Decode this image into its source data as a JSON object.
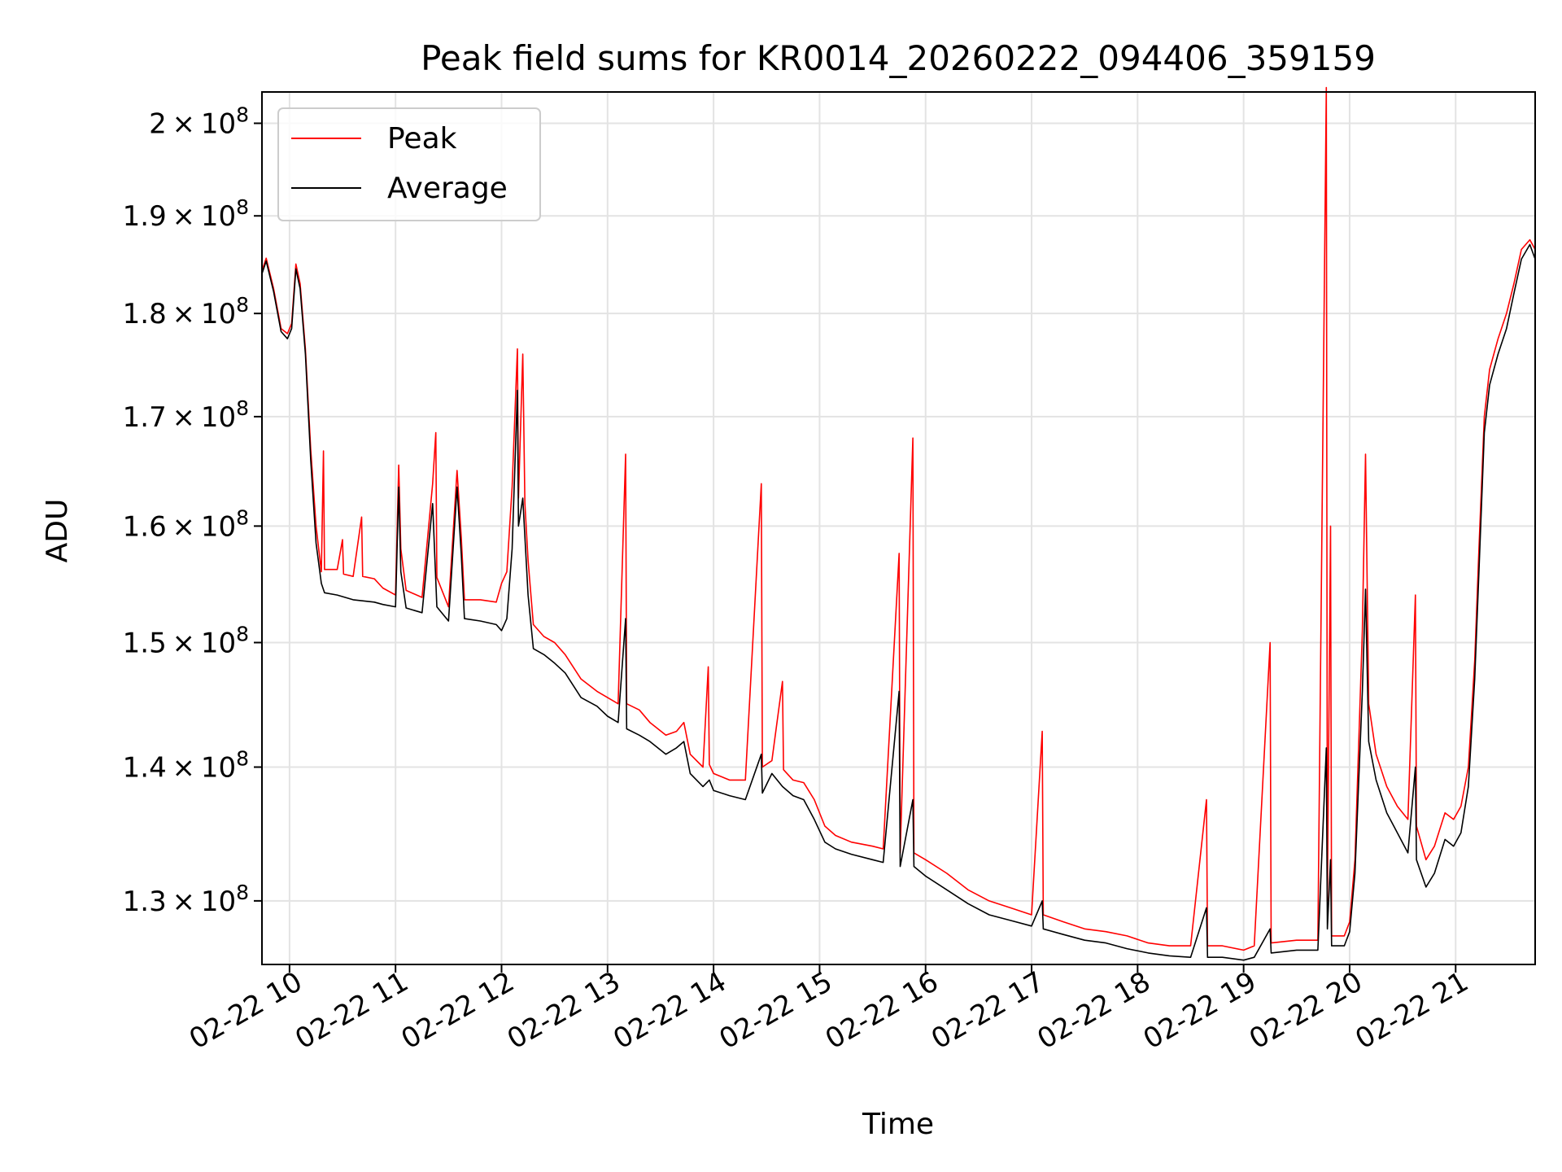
{
  "chart_data": {
    "type": "line",
    "title": "Peak field sums for KR0014_20260222_094406_359159",
    "xlabel": "Time",
    "ylabel": "ADU",
    "yscale": "log",
    "xlim": [
      9.74,
      21.75
    ],
    "ylim": [
      125500000,
      203500000
    ],
    "grid": true,
    "legend_position": "top-left",
    "x_ticks": [
      {
        "value": 10,
        "label": "02-22 10"
      },
      {
        "value": 11,
        "label": "02-22 11"
      },
      {
        "value": 12,
        "label": "02-22 12"
      },
      {
        "value": 13,
        "label": "02-22 13"
      },
      {
        "value": 14,
        "label": "02-22 14"
      },
      {
        "value": 15,
        "label": "02-22 15"
      },
      {
        "value": 16,
        "label": "02-22 16"
      },
      {
        "value": 17,
        "label": "02-22 17"
      },
      {
        "value": 18,
        "label": "02-22 18"
      },
      {
        "value": 19,
        "label": "02-22 19"
      },
      {
        "value": 20,
        "label": "02-22 20"
      },
      {
        "value": 21,
        "label": "02-22 21"
      }
    ],
    "y_ticks": [
      {
        "value": 130000000,
        "mantissa": "1.3",
        "exp": "8"
      },
      {
        "value": 140000000,
        "mantissa": "1.4",
        "exp": "8"
      },
      {
        "value": 150000000,
        "mantissa": "1.5",
        "exp": "8"
      },
      {
        "value": 160000000,
        "mantissa": "1.6",
        "exp": "8"
      },
      {
        "value": 170000000,
        "mantissa": "1.7",
        "exp": "8"
      },
      {
        "value": 180000000,
        "mantissa": "1.8",
        "exp": "8"
      },
      {
        "value": 190000000,
        "mantissa": "1.9",
        "exp": "8"
      },
      {
        "value": 200000000,
        "mantissa": "2",
        "exp": "8"
      }
    ],
    "series": [
      {
        "name": "Peak",
        "color": "#ff0000",
        "points": [
          [
            9.74,
            184.3
          ],
          [
            9.78,
            185.6
          ],
          [
            9.85,
            182.5
          ],
          [
            9.92,
            178.5
          ],
          [
            9.98,
            178.0
          ],
          [
            10.02,
            179.0
          ],
          [
            10.06,
            185.0
          ],
          [
            10.1,
            183.0
          ],
          [
            10.15,
            176.5
          ],
          [
            10.2,
            167.0
          ],
          [
            10.25,
            160.0
          ],
          [
            10.3,
            156.0
          ],
          [
            10.32,
            166.8
          ],
          [
            10.33,
            156.2
          ],
          [
            10.45,
            156.2
          ],
          [
            10.5,
            158.8
          ],
          [
            10.51,
            155.8
          ],
          [
            10.6,
            155.6
          ],
          [
            10.68,
            160.8
          ],
          [
            10.69,
            155.6
          ],
          [
            10.8,
            155.4
          ],
          [
            10.88,
            154.6
          ],
          [
            11.0,
            154.0
          ],
          [
            11.03,
            165.5
          ],
          [
            11.05,
            158.0
          ],
          [
            11.1,
            154.4
          ],
          [
            11.25,
            153.8
          ],
          [
            11.35,
            163.8
          ],
          [
            11.38,
            168.5
          ],
          [
            11.39,
            155.5
          ],
          [
            11.5,
            153.0
          ],
          [
            11.58,
            165.0
          ],
          [
            11.62,
            159.0
          ],
          [
            11.65,
            153.6
          ],
          [
            11.8,
            153.6
          ],
          [
            11.95,
            153.4
          ],
          [
            12.0,
            155.0
          ],
          [
            12.05,
            156.0
          ],
          [
            12.1,
            163.5
          ],
          [
            12.15,
            176.5
          ],
          [
            12.16,
            162.5
          ],
          [
            12.2,
            176.0
          ],
          [
            12.22,
            162.0
          ],
          [
            12.25,
            157.0
          ],
          [
            12.3,
            151.5
          ],
          [
            12.4,
            150.5
          ],
          [
            12.5,
            150.0
          ],
          [
            12.6,
            149.0
          ],
          [
            12.75,
            147.0
          ],
          [
            12.9,
            146.0
          ],
          [
            13.0,
            145.5
          ],
          [
            13.1,
            145.0
          ],
          [
            13.17,
            166.5
          ],
          [
            13.18,
            145.0
          ],
          [
            13.3,
            144.5
          ],
          [
            13.4,
            143.5
          ],
          [
            13.55,
            142.5
          ],
          [
            13.65,
            142.8
          ],
          [
            13.72,
            143.5
          ],
          [
            13.78,
            141.0
          ],
          [
            13.9,
            140.0
          ],
          [
            13.95,
            148.0
          ],
          [
            13.96,
            140.2
          ],
          [
            14.0,
            139.5
          ],
          [
            14.15,
            139.0
          ],
          [
            14.3,
            139.0
          ],
          [
            14.45,
            163.8
          ],
          [
            14.46,
            140.0
          ],
          [
            14.55,
            140.5
          ],
          [
            14.65,
            146.8
          ],
          [
            14.66,
            139.8
          ],
          [
            14.75,
            139.0
          ],
          [
            14.85,
            138.8
          ],
          [
            14.95,
            137.5
          ],
          [
            15.05,
            135.5
          ],
          [
            15.15,
            134.8
          ],
          [
            15.3,
            134.3
          ],
          [
            15.5,
            134.0
          ],
          [
            15.6,
            133.8
          ],
          [
            15.75,
            157.6
          ],
          [
            15.76,
            133.5
          ],
          [
            15.88,
            168.0
          ],
          [
            15.89,
            133.5
          ],
          [
            16.0,
            133.0
          ],
          [
            16.2,
            132.0
          ],
          [
            16.4,
            130.8
          ],
          [
            16.6,
            130.0
          ],
          [
            16.8,
            129.5
          ],
          [
            17.0,
            129.0
          ],
          [
            17.1,
            142.8
          ],
          [
            17.11,
            129.0
          ],
          [
            17.3,
            128.5
          ],
          [
            17.5,
            128.0
          ],
          [
            17.7,
            127.8
          ],
          [
            17.9,
            127.5
          ],
          [
            18.1,
            127.0
          ],
          [
            18.3,
            126.8
          ],
          [
            18.5,
            126.8
          ],
          [
            18.65,
            137.5
          ],
          [
            18.66,
            126.8
          ],
          [
            18.8,
            126.8
          ],
          [
            19.0,
            126.5
          ],
          [
            19.1,
            126.8
          ],
          [
            19.25,
            150.0
          ],
          [
            19.26,
            127.0
          ],
          [
            19.5,
            127.2
          ],
          [
            19.7,
            127.2
          ],
          [
            19.78,
            204.0
          ],
          [
            19.79,
            130.0
          ],
          [
            19.82,
            160.0
          ],
          [
            19.83,
            127.5
          ],
          [
            19.95,
            127.5
          ],
          [
            20.0,
            128.5
          ],
          [
            20.05,
            133.0
          ],
          [
            20.12,
            151.0
          ],
          [
            20.15,
            166.5
          ],
          [
            20.18,
            145.0
          ],
          [
            20.25,
            141.0
          ],
          [
            20.35,
            138.5
          ],
          [
            20.45,
            137.0
          ],
          [
            20.55,
            136.0
          ],
          [
            20.62,
            154.0
          ],
          [
            20.63,
            135.5
          ],
          [
            20.72,
            133.0
          ],
          [
            20.8,
            134.0
          ],
          [
            20.9,
            136.5
          ],
          [
            20.98,
            136.0
          ],
          [
            21.05,
            137.0
          ],
          [
            21.12,
            140.0
          ],
          [
            21.18,
            148.5
          ],
          [
            21.22,
            158.0
          ],
          [
            21.27,
            170.0
          ],
          [
            21.32,
            174.5
          ],
          [
            21.4,
            177.5
          ],
          [
            21.48,
            180.0
          ],
          [
            21.55,
            183.0
          ],
          [
            21.62,
            186.5
          ],
          [
            21.7,
            187.5
          ],
          [
            21.75,
            186.5
          ]
        ]
      },
      {
        "name": "Average",
        "color": "#000000",
        "points": [
          [
            9.74,
            184.0
          ],
          [
            9.78,
            185.3
          ],
          [
            9.85,
            182.2
          ],
          [
            9.92,
            178.2
          ],
          [
            9.98,
            177.5
          ],
          [
            10.02,
            178.5
          ],
          [
            10.06,
            184.5
          ],
          [
            10.1,
            182.5
          ],
          [
            10.15,
            176.0
          ],
          [
            10.2,
            166.0
          ],
          [
            10.25,
            158.5
          ],
          [
            10.3,
            155.0
          ],
          [
            10.33,
            154.2
          ],
          [
            10.45,
            154.0
          ],
          [
            10.6,
            153.6
          ],
          [
            10.8,
            153.4
          ],
          [
            10.88,
            153.2
          ],
          [
            11.0,
            153.0
          ],
          [
            11.03,
            163.5
          ],
          [
            11.05,
            156.0
          ],
          [
            11.1,
            152.9
          ],
          [
            11.25,
            152.5
          ],
          [
            11.35,
            162.0
          ],
          [
            11.39,
            153.0
          ],
          [
            11.5,
            151.8
          ],
          [
            11.58,
            163.5
          ],
          [
            11.62,
            157.5
          ],
          [
            11.65,
            152.0
          ],
          [
            11.8,
            151.8
          ],
          [
            11.95,
            151.5
          ],
          [
            12.0,
            151.0
          ],
          [
            12.05,
            152.0
          ],
          [
            12.1,
            158.0
          ],
          [
            12.15,
            172.5
          ],
          [
            12.16,
            160.0
          ],
          [
            12.2,
            162.5
          ],
          [
            12.25,
            154.0
          ],
          [
            12.3,
            149.5
          ],
          [
            12.4,
            149.0
          ],
          [
            12.5,
            148.3
          ],
          [
            12.6,
            147.5
          ],
          [
            12.75,
            145.5
          ],
          [
            12.9,
            144.8
          ],
          [
            13.0,
            144.0
          ],
          [
            13.1,
            143.5
          ],
          [
            13.17,
            152.0
          ],
          [
            13.18,
            143.0
          ],
          [
            13.3,
            142.5
          ],
          [
            13.4,
            142.0
          ],
          [
            13.55,
            141.0
          ],
          [
            13.65,
            141.5
          ],
          [
            13.72,
            142.0
          ],
          [
            13.78,
            139.5
          ],
          [
            13.9,
            138.5
          ],
          [
            13.96,
            139.0
          ],
          [
            14.0,
            138.2
          ],
          [
            14.15,
            137.8
          ],
          [
            14.3,
            137.5
          ],
          [
            14.45,
            141.0
          ],
          [
            14.46,
            138.0
          ],
          [
            14.55,
            139.5
          ],
          [
            14.65,
            138.5
          ],
          [
            14.75,
            137.8
          ],
          [
            14.85,
            137.5
          ],
          [
            14.95,
            136.0
          ],
          [
            15.05,
            134.3
          ],
          [
            15.15,
            133.8
          ],
          [
            15.3,
            133.4
          ],
          [
            15.5,
            133.0
          ],
          [
            15.6,
            132.8
          ],
          [
            15.75,
            146.0
          ],
          [
            15.76,
            132.5
          ],
          [
            15.88,
            137.5
          ],
          [
            15.89,
            132.5
          ],
          [
            16.0,
            131.8
          ],
          [
            16.2,
            130.8
          ],
          [
            16.4,
            129.8
          ],
          [
            16.6,
            129.0
          ],
          [
            16.8,
            128.6
          ],
          [
            17.0,
            128.2
          ],
          [
            17.1,
            130.0
          ],
          [
            17.11,
            128.0
          ],
          [
            17.3,
            127.6
          ],
          [
            17.5,
            127.2
          ],
          [
            17.7,
            127.0
          ],
          [
            17.9,
            126.6
          ],
          [
            18.1,
            126.3
          ],
          [
            18.3,
            126.1
          ],
          [
            18.5,
            126.0
          ],
          [
            18.65,
            129.5
          ],
          [
            18.66,
            126.0
          ],
          [
            18.8,
            126.0
          ],
          [
            19.0,
            125.8
          ],
          [
            19.1,
            126.0
          ],
          [
            19.25,
            128.0
          ],
          [
            19.26,
            126.3
          ],
          [
            19.5,
            126.5
          ],
          [
            19.7,
            126.5
          ],
          [
            19.78,
            141.5
          ],
          [
            19.79,
            128.0
          ],
          [
            19.82,
            133.0
          ],
          [
            19.83,
            126.8
          ],
          [
            19.95,
            126.8
          ],
          [
            20.0,
            127.8
          ],
          [
            20.05,
            132.0
          ],
          [
            20.12,
            146.0
          ],
          [
            20.15,
            154.5
          ],
          [
            20.18,
            142.0
          ],
          [
            20.25,
            139.0
          ],
          [
            20.35,
            136.5
          ],
          [
            20.45,
            135.0
          ],
          [
            20.55,
            133.5
          ],
          [
            20.62,
            140.0
          ],
          [
            20.63,
            133.0
          ],
          [
            20.72,
            131.0
          ],
          [
            20.8,
            132.0
          ],
          [
            20.9,
            134.5
          ],
          [
            20.98,
            134.0
          ],
          [
            21.05,
            135.0
          ],
          [
            21.12,
            138.5
          ],
          [
            21.18,
            147.0
          ],
          [
            21.22,
            156.0
          ],
          [
            21.27,
            168.5
          ],
          [
            21.32,
            173.0
          ],
          [
            21.4,
            176.0
          ],
          [
            21.48,
            178.5
          ],
          [
            21.55,
            182.0
          ],
          [
            21.62,
            185.5
          ],
          [
            21.7,
            187.0
          ],
          [
            21.75,
            185.5
          ]
        ]
      }
    ]
  }
}
